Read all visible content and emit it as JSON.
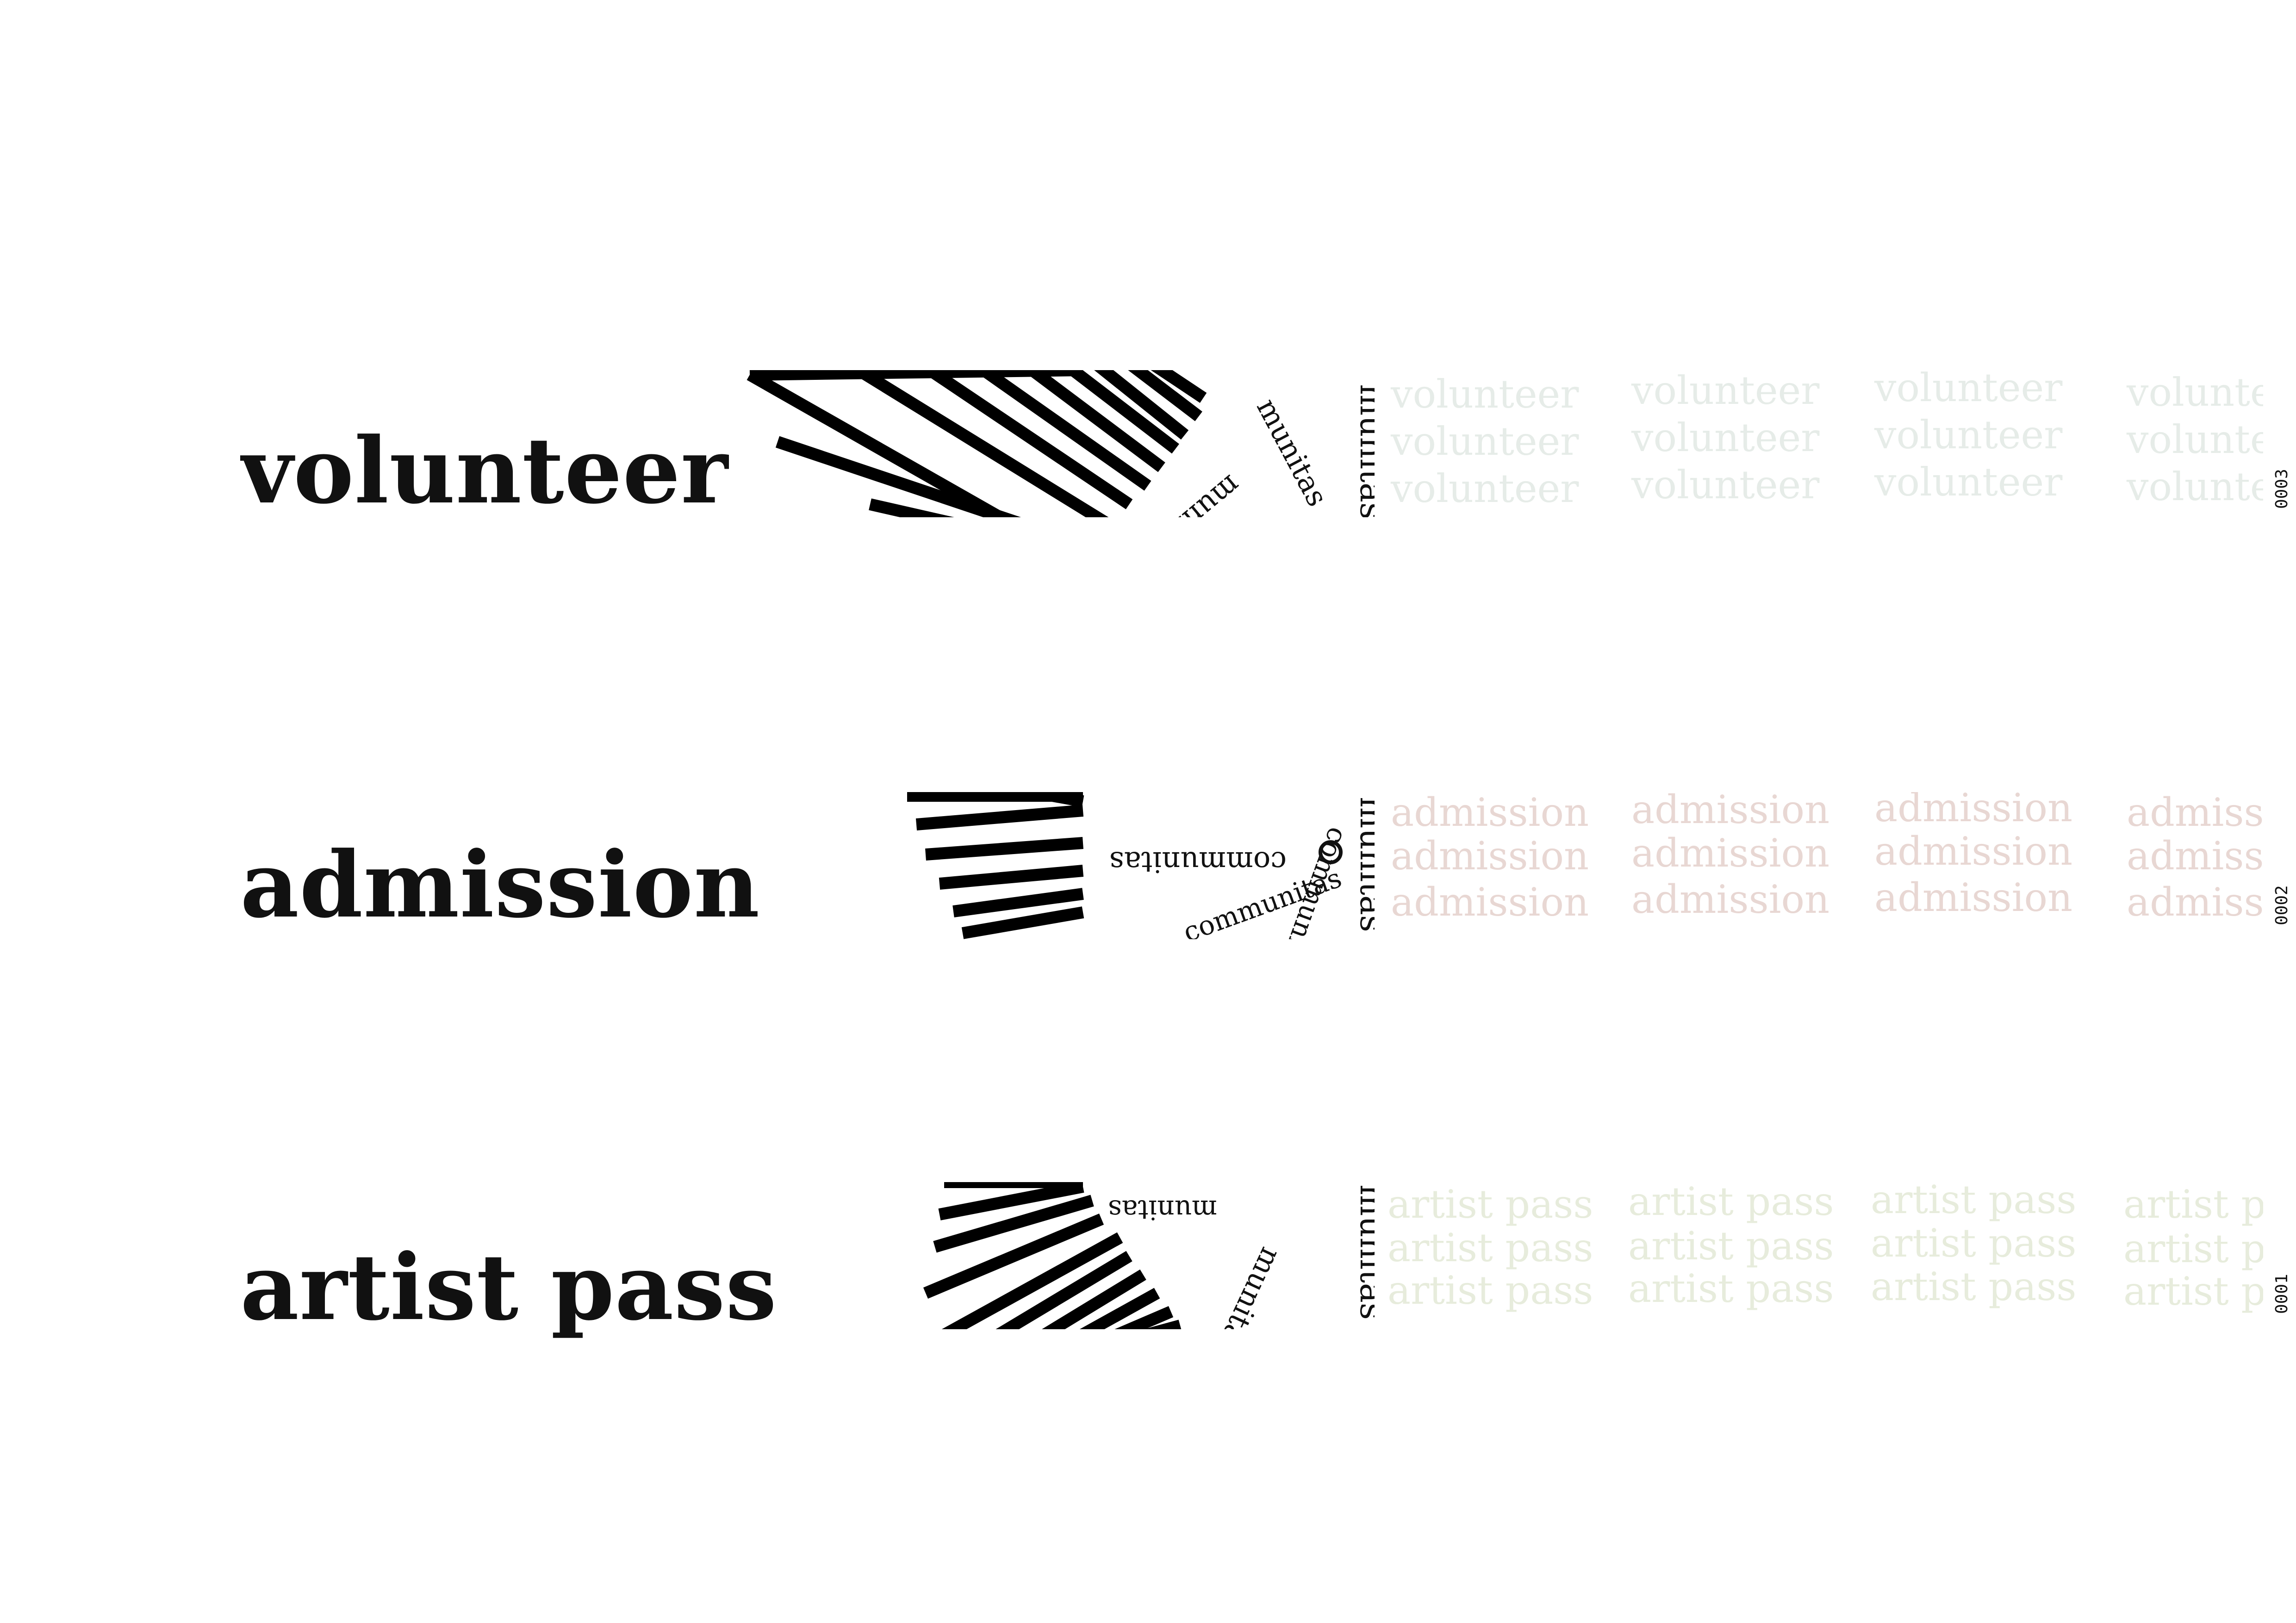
{
  "wristbands": [
    {
      "label": "volunteer",
      "brand": "munitas",
      "arc_brand": "munitas",
      "pattern_word": "volunteer",
      "pattern_color": "#e6ece8",
      "serial": "0003",
      "colors": {
        "ink": "#111111",
        "pattern": "#e6ece8"
      }
    },
    {
      "label": "admission",
      "brand": "munitas",
      "arc_brand": "communitas",
      "pattern_word": "admission",
      "pattern_color": "#e8d7d3",
      "serial": "0002",
      "colors": {
        "ink": "#111111",
        "pattern": "#e8d7d3"
      }
    },
    {
      "label": "artist pass",
      "brand": "munitas",
      "arc_brand": "munitas",
      "pattern_word": "artist pass",
      "pattern_color": "#e7ecdc",
      "serial": "0001",
      "colors": {
        "ink": "#111111",
        "pattern": "#e7ecdc"
      }
    }
  ],
  "icons": [
    "sunburst-rays-graphic",
    "circular-text-graphic"
  ]
}
